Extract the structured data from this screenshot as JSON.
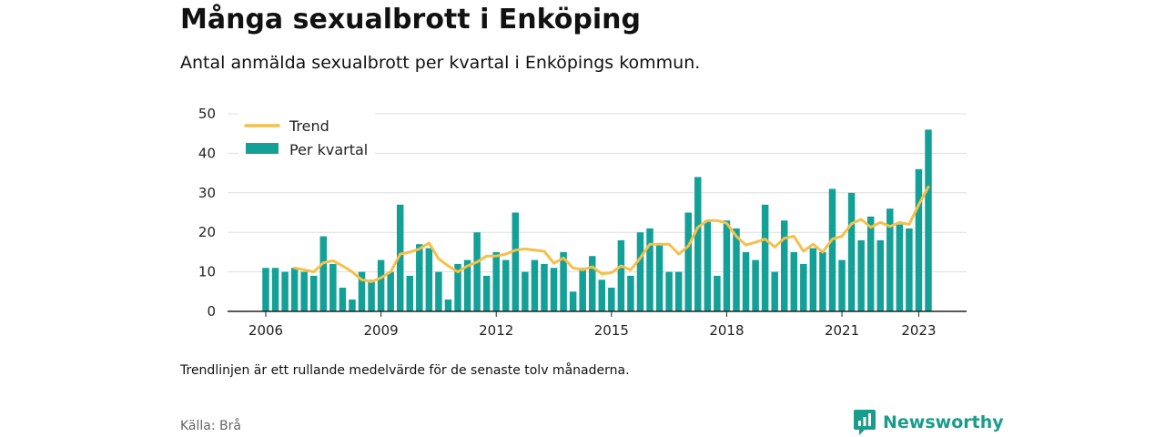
{
  "header": {
    "title": "Många sexualbrott i Enköping",
    "subtitle": "Antal anmälda sexualbrott per kvartal i Enköpings kommun."
  },
  "footer": {
    "note": "Trendlinjen är ett rullande medelvärde för de senaste tolv månaderna.",
    "source": "Källa: Brå",
    "brand": "Newsworthy",
    "brand_icon": "bar-chart-logo-icon"
  },
  "colors": {
    "bar": "#13a197",
    "trend": "#f5c04a",
    "grid": "#dddddd",
    "axis": "#222222"
  },
  "chart_data": {
    "type": "bar",
    "x_unit": "quarter",
    "x": [
      "2006 Q1",
      "2006 Q2",
      "2006 Q3",
      "2006 Q4",
      "2007 Q1",
      "2007 Q2",
      "2007 Q3",
      "2007 Q4",
      "2008 Q1",
      "2008 Q2",
      "2008 Q3",
      "2008 Q4",
      "2009 Q1",
      "2009 Q2",
      "2009 Q3",
      "2009 Q4",
      "2010 Q1",
      "2010 Q2",
      "2010 Q3",
      "2010 Q4",
      "2011 Q1",
      "2011 Q2",
      "2011 Q3",
      "2011 Q4",
      "2012 Q1",
      "2012 Q2",
      "2012 Q3",
      "2012 Q4",
      "2013 Q1",
      "2013 Q2",
      "2013 Q3",
      "2013 Q4",
      "2014 Q1",
      "2014 Q2",
      "2014 Q3",
      "2014 Q4",
      "2015 Q1",
      "2015 Q2",
      "2015 Q3",
      "2015 Q4",
      "2016 Q1",
      "2016 Q2",
      "2016 Q3",
      "2016 Q4",
      "2017 Q1",
      "2017 Q2",
      "2017 Q3",
      "2017 Q4",
      "2018 Q1",
      "2018 Q2",
      "2018 Q3",
      "2018 Q4",
      "2019 Q1",
      "2019 Q2",
      "2019 Q3",
      "2019 Q4",
      "2020 Q1",
      "2020 Q2",
      "2020 Q3",
      "2020 Q4",
      "2021 Q1",
      "2021 Q2",
      "2021 Q3",
      "2021 Q4",
      "2022 Q1",
      "2022 Q2",
      "2022 Q3",
      "2022 Q4",
      "2023 Q1",
      "2023 Q2"
    ],
    "series": [
      {
        "name": "Per kvartal",
        "type": "bar",
        "values": [
          11,
          11,
          10,
          11,
          10,
          9,
          19,
          12,
          6,
          3,
          10,
          8,
          13,
          10,
          27,
          9,
          17,
          16,
          10,
          3,
          12,
          13,
          20,
          9,
          15,
          13,
          25,
          10,
          13,
          12,
          11,
          15,
          5,
          11,
          14,
          8,
          6,
          18,
          9,
          20,
          21,
          17,
          10,
          10,
          25,
          34,
          23,
          9,
          23,
          21,
          15,
          13,
          27,
          10,
          23,
          15,
          12,
          16,
          15,
          31,
          13,
          30,
          18,
          24,
          18,
          26,
          22,
          21,
          36,
          46
        ]
      },
      {
        "name": "Trend",
        "type": "line",
        "values": [
          null,
          null,
          null,
          11,
          10.5,
          10,
          12.3,
          12.8,
          11.5,
          10,
          8,
          7.5,
          8.5,
          10,
          14.5,
          15,
          15.8,
          17.3,
          13.3,
          11.5,
          10,
          11.5,
          12.5,
          14,
          14,
          14.5,
          15.5,
          15.8,
          15.5,
          15.2,
          12.2,
          13.5,
          11,
          10.5,
          11.3,
          9.5,
          9.8,
          11.5,
          10.5,
          13.5,
          17,
          17,
          17,
          14.5,
          16.5,
          21.3,
          23,
          23,
          22.3,
          19,
          16.8,
          17.5,
          18.3,
          16.3,
          18.5,
          19,
          15.2,
          17,
          15,
          18.3,
          19,
          22.2,
          23.3,
          21.3,
          22.5,
          21.5,
          22.5,
          22,
          27,
          31.5
        ]
      }
    ],
    "xticks": [
      "2006",
      "2009",
      "2012",
      "2015",
      "2018",
      "2021",
      "2023"
    ],
    "xtick_positions": [
      "2006 Q1",
      "2009 Q1",
      "2012 Q1",
      "2015 Q1",
      "2018 Q1",
      "2021 Q1",
      "2023 Q1"
    ],
    "yticks": [
      0,
      10,
      20,
      30,
      40,
      50
    ],
    "ylim": [
      0,
      50
    ],
    "grid": true,
    "legend": {
      "position": "top-left",
      "entries": [
        "Trend",
        "Per kvartal"
      ]
    }
  }
}
